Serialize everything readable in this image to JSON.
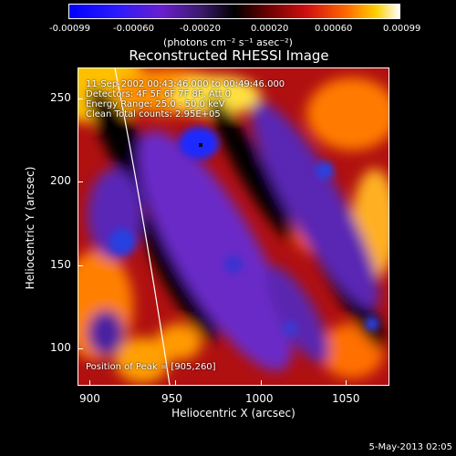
{
  "colorbar": {
    "tick_labels": [
      "-0.00099",
      "-0.00060",
      "-0.00020",
      "0.00020",
      "0.00060",
      "0.00099"
    ],
    "units": "(photons cm⁻² s⁻¹ asec⁻²)"
  },
  "plot": {
    "title": "Reconstructed RHESSI Image",
    "annotation_line1": "11-Sep-2002 00:43:46.000 to 00:49:46.000",
    "annotation_line2": "Detectors: 4F 5F 6F 7F 8F, Att 0",
    "annotation_line3": "Energy Range: 25.0 - 50.0 keV",
    "annotation_line4": "Clean     Total counts: 2.95E+05",
    "peak_label": "Position of Peak = [905,260]",
    "xlabel": "Heliocentric X (arcsec)",
    "ylabel": "Heliocentric Y (arcsec)",
    "x_ticks": [
      "900",
      "950",
      "1000",
      "1050"
    ],
    "y_ticks": [
      "100",
      "150",
      "200",
      "250"
    ],
    "date_stamp": "5-May-2013 02:05"
  }
}
